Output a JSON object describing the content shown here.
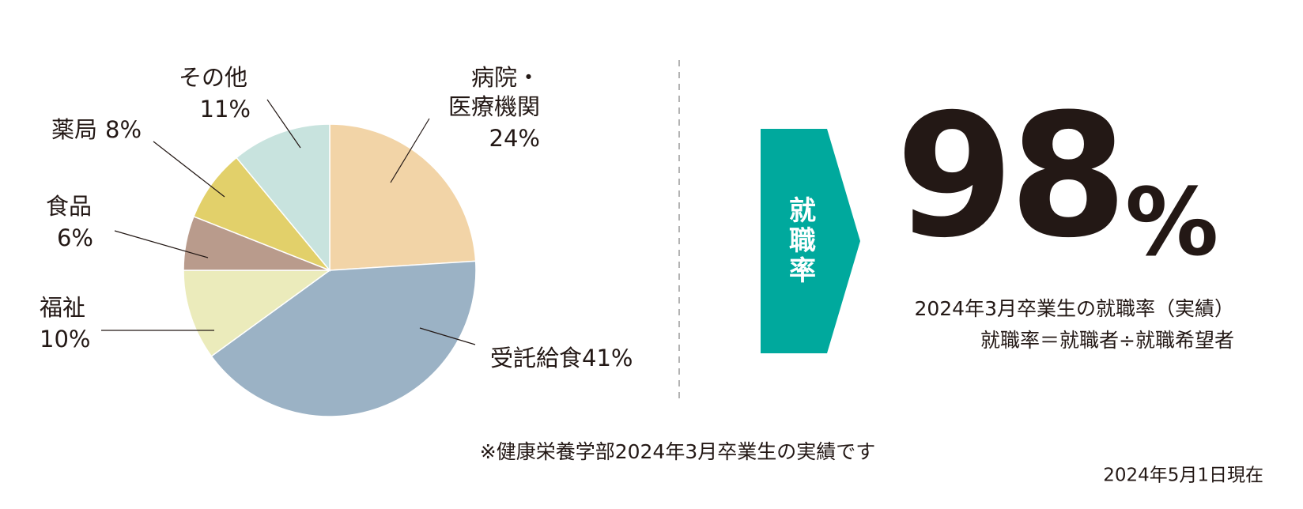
{
  "chart_data": {
    "type": "pie",
    "categories": [
      "病院・医療機関",
      "受託給食",
      "福祉",
      "食品",
      "薬局",
      "その他"
    ],
    "values": [
      24,
      41,
      10,
      6,
      8,
      11
    ],
    "value_labels": [
      "24%",
      "41%",
      "10%",
      "6%",
      "8%",
      "11%"
    ],
    "colors": [
      "#f2d4a7",
      "#9bb2c5",
      "#ebebbb",
      "#b99b8c",
      "#e2d06a",
      "#c8e3de"
    ]
  },
  "stat": {
    "label": "就職率",
    "number": "98",
    "unit": "%",
    "caption": "2024年3月卒業生の就職率（実績）",
    "formula": "就職率＝就職者÷就職希望者"
  },
  "footnote": "※健康栄養学部2024年3月卒業生の実績です",
  "date": "2024年5月1日現在"
}
